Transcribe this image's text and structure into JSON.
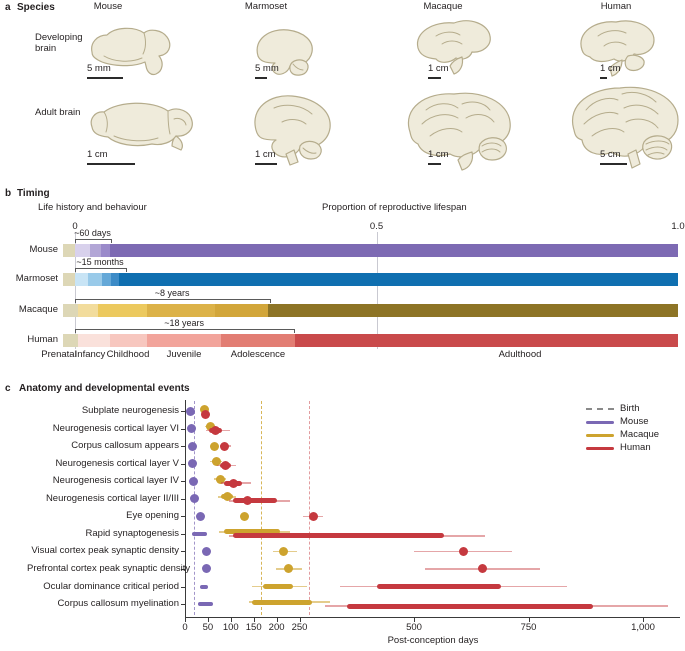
{
  "panel_a": {
    "label": "a",
    "title": "Species",
    "columns": [
      "Mouse",
      "Marmoset",
      "Macaque",
      "Human"
    ],
    "rows": [
      "Developing brain",
      "Adult brain"
    ],
    "scalebars": {
      "developing": [
        "5 mm",
        "5 mm",
        "1 cm",
        "1 cm"
      ],
      "adult": [
        "1 cm",
        "1 cm",
        "1 cm",
        "5 cm"
      ]
    }
  },
  "colors": {
    "mouse": "#7a68b4",
    "macaque": "#cda32e",
    "human": "#c5393f",
    "birth_legend": "#8a8a8a",
    "prenatal_beige": "#ddd7b6"
  },
  "chart_data": [
    {
      "type": "bar",
      "panel_label": "b",
      "title": "Timing",
      "left_title": "Life history and behaviour",
      "right_title": "Proportion of reproductive lifespan",
      "xlim": [
        0,
        1.0
      ],
      "ticks": [
        {
          "v": 0,
          "label": "0"
        },
        {
          "v": 0.5,
          "label": "0.5"
        },
        {
          "v": 1.0,
          "label": "1.0"
        }
      ],
      "stages": [
        "Prenatal",
        "Infancy",
        "Childhood",
        "Juvenile",
        "Adolescence",
        "Adulthood"
      ],
      "rows": [
        {
          "species": "Mouse",
          "annotation": "~60 days",
          "annotation_end": 0.058,
          "segments": [
            {
              "stage": "Prenatal",
              "from": -0.02,
              "to": 0.0,
              "color": "#ddd7b6"
            },
            {
              "stage": "Infancy",
              "from": 0.0,
              "to": 0.025,
              "color": "#d8d1ec"
            },
            {
              "stage": "Childhood",
              "from": 0.025,
              "to": 0.043,
              "color": "#b2a6d6"
            },
            {
              "stage": "Juvenile-Adolescence",
              "from": 0.043,
              "to": 0.058,
              "color": "#9a8aca"
            },
            {
              "stage": "Adulthood",
              "from": 0.058,
              "to": 1.0,
              "color": "#7d6ab3"
            }
          ]
        },
        {
          "species": "Marmoset",
          "annotation": "~15 months",
          "annotation_end": 0.083,
          "segments": [
            {
              "stage": "Prenatal",
              "from": -0.02,
              "to": 0.0,
              "color": "#ddd7b6"
            },
            {
              "stage": "Infancy",
              "from": 0.0,
              "to": 0.022,
              "color": "#c8e4f5"
            },
            {
              "stage": "Childhood",
              "from": 0.022,
              "to": 0.045,
              "color": "#99cae9"
            },
            {
              "stage": "Juvenile",
              "from": 0.045,
              "to": 0.06,
              "color": "#64a8d8"
            },
            {
              "stage": "Adolescence",
              "from": 0.06,
              "to": 0.073,
              "color": "#3c8bc7"
            },
            {
              "stage": "Adulthood",
              "from": 0.073,
              "to": 1.0,
              "color": "#0f6fb0"
            }
          ]
        },
        {
          "species": "Macaque",
          "annotation": "~8 years",
          "annotation_end": 0.322,
          "segments": [
            {
              "stage": "Prenatal",
              "from": -0.02,
              "to": 0.005,
              "color": "#ddd7b6"
            },
            {
              "stage": "Infancy",
              "from": 0.005,
              "to": 0.038,
              "color": "#f2dc9c"
            },
            {
              "stage": "Childhood",
              "from": 0.038,
              "to": 0.119,
              "color": "#ecc95e"
            },
            {
              "stage": "Juvenile",
              "from": 0.119,
              "to": 0.232,
              "color": "#dcb248"
            },
            {
              "stage": "Adolescence",
              "from": 0.232,
              "to": 0.32,
              "color": "#d2a63a"
            },
            {
              "stage": "Adulthood",
              "from": 0.32,
              "to": 1.0,
              "color": "#8d7426"
            }
          ]
        },
        {
          "species": "Human",
          "annotation": "~18 years",
          "annotation_end": 0.362,
          "segments": [
            {
              "stage": "Prenatal",
              "from": -0.02,
              "to": 0.005,
              "color": "#ddd7b6"
            },
            {
              "stage": "Infancy",
              "from": 0.005,
              "to": 0.058,
              "color": "#fae1db"
            },
            {
              "stage": "Childhood",
              "from": 0.058,
              "to": 0.119,
              "color": "#f7c7bf"
            },
            {
              "stage": "Juvenile",
              "from": 0.119,
              "to": 0.242,
              "color": "#f2a49b"
            },
            {
              "stage": "Adolescence",
              "from": 0.242,
              "to": 0.365,
              "color": "#e27d73"
            },
            {
              "stage": "Adulthood",
              "from": 0.365,
              "to": 1.0,
              "color": "#c94a4b"
            }
          ]
        }
      ]
    },
    {
      "type": "scatter",
      "panel_label": "c",
      "title": "Anatomy and developmental events",
      "xlabel": "Post-conception days",
      "xlim": [
        0,
        1080
      ],
      "xticks": [
        {
          "v": 0,
          "label": "0"
        },
        {
          "v": 50,
          "label": "50"
        },
        {
          "v": 100,
          "label": "100"
        },
        {
          "v": 150,
          "label": "150"
        },
        {
          "v": 200,
          "label": "200"
        },
        {
          "v": 250,
          "label": "250"
        },
        {
          "v": 500,
          "label": "500"
        },
        {
          "v": 750,
          "label": "750"
        },
        {
          "v": 1000,
          "label": "1,000"
        }
      ],
      "legend": [
        {
          "label": "Birth",
          "style": "dashed",
          "color": "#8a8a8a"
        },
        {
          "label": "Mouse",
          "style": "solid",
          "color": "#7a68b4"
        },
        {
          "label": "Macaque",
          "style": "solid",
          "color": "#cda32e"
        },
        {
          "label": "Human",
          "style": "solid",
          "color": "#c5393f"
        }
      ],
      "birth_days": {
        "mouse": 20,
        "macaque": 165,
        "human": 270
      },
      "rows": [
        {
          "event": "Subplate neurogenesis",
          "mouse": {
            "dot": 12
          },
          "macaque": {
            "dot": 42,
            "dy": -2
          },
          "human": {
            "dot": 45,
            "thin": [
              40,
              52
            ],
            "dy": 3
          }
        },
        {
          "event": "Neurogenesis cortical layer VI",
          "mouse": {
            "dot": 15
          },
          "macaque": {
            "dot": 55,
            "thick": [
              45,
              62
            ],
            "thin": [
              43,
              68
            ],
            "dy": -2
          },
          "human": {
            "dot": 67,
            "thick": [
              53,
              80
            ],
            "thin": [
              45,
              98
            ],
            "dy": 2
          }
        },
        {
          "event": "Corpus callosum appears",
          "mouse": {
            "dot": 17
          },
          "macaque": {
            "dot": 65
          },
          "human": {
            "dot": 87,
            "thin": [
              76,
              100
            ]
          }
        },
        {
          "event": "Neurogenesis cortical layer V",
          "mouse": {
            "dot": 17
          },
          "macaque": {
            "dot": 69,
            "thick": [
              58,
              76
            ],
            "thin": [
              55,
              80
            ],
            "dy": -2
          },
          "human": {
            "dot": 88,
            "thick": [
              76,
              100
            ],
            "thin": [
              70,
              112
            ],
            "dy": 2
          }
        },
        {
          "event": "Neurogenesis cortical layer IV",
          "mouse": {
            "dot": 18
          },
          "macaque": {
            "dot": 77,
            "thick": [
              67,
              85
            ],
            "thin": [
              63,
              90
            ],
            "dy": -2
          },
          "human": {
            "dot": 105,
            "thick": [
              85,
              125
            ],
            "thin": [
              78,
              145
            ],
            "dy": 2
          }
        },
        {
          "event": "Neurogenesis cortical layer II/III",
          "mouse": {
            "dot": 20
          },
          "macaque": {
            "dot": 92,
            "thick": [
              78,
              105
            ],
            "thin": [
              72,
              112
            ],
            "dy": -2
          },
          "human": {
            "dot": 137,
            "thick": [
              105,
              200
            ],
            "thin": [
              95,
              230
            ],
            "dy": 2
          }
        },
        {
          "event": "Eye opening",
          "mouse": {
            "dot": 33
          },
          "macaque": {
            "dot": 131
          },
          "human": {
            "dot": 280,
            "thin": [
              258,
              302
            ]
          }
        },
        {
          "event": "Rapid synaptogenesis",
          "mouse": {
            "thick": [
              15,
              47
            ]
          },
          "macaque": {
            "thick": [
              85,
              208
            ],
            "thin": [
              75,
              230
            ],
            "dy": -2
          },
          "human": {
            "thick": [
              105,
              565
            ],
            "thin": [
              95,
              655
            ],
            "dy": 2
          }
        },
        {
          "event": "Visual cortex peak synaptic density",
          "mouse": {
            "dot": 46
          },
          "macaque": {
            "dot": 215,
            "thin": [
              193,
              245
            ]
          },
          "human": {
            "dot": 607,
            "thin": [
              500,
              715
            ]
          }
        },
        {
          "event": "Prefrontal cortex peak synaptic density",
          "mouse": {
            "dot": 46
          },
          "macaque": {
            "dot": 226,
            "thin": [
              198,
              255
            ]
          },
          "human": {
            "dot": 650,
            "thin": [
              524,
              775
            ]
          }
        },
        {
          "event": "Ocular dominance critical period",
          "mouse": {
            "thick": [
              33,
              50
            ]
          },
          "macaque": {
            "thick": [
              170,
              236
            ],
            "thin": [
              146,
              266
            ]
          },
          "human": {
            "thick": [
              420,
              690
            ],
            "thin": [
              338,
              835
            ]
          }
        },
        {
          "event": "Corpus callosum myelination",
          "mouse": {
            "thick": [
              28,
              62
            ]
          },
          "macaque": {
            "thick": [
              146,
              277
            ],
            "thin": [
              140,
              317
            ],
            "dy": -2
          },
          "human": {
            "thick": [
              354,
              890
            ],
            "thin": [
              305,
              1055
            ],
            "dy": 2
          }
        }
      ]
    }
  ]
}
